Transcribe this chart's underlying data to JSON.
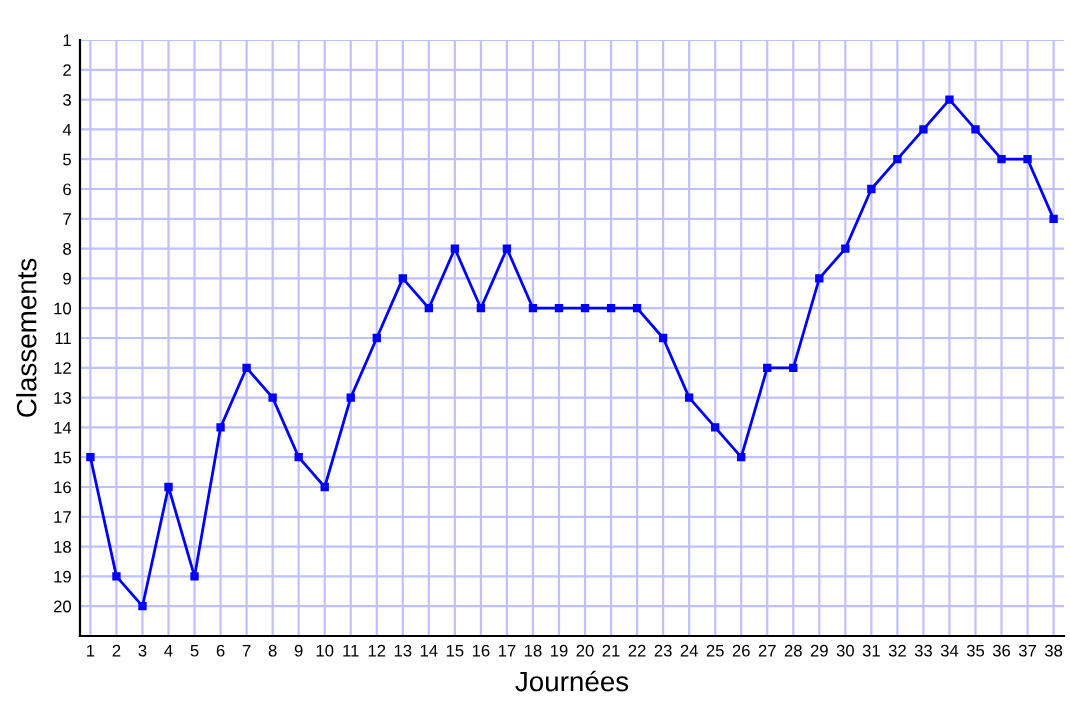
{
  "chart_data": {
    "type": "line",
    "xlabel": "Journées",
    "ylabel": "Classements",
    "x": [
      1,
      2,
      3,
      4,
      5,
      6,
      7,
      8,
      9,
      10,
      11,
      12,
      13,
      14,
      15,
      16,
      17,
      18,
      19,
      20,
      21,
      22,
      23,
      24,
      25,
      26,
      27,
      28,
      29,
      30,
      31,
      32,
      33,
      34,
      35,
      36,
      37,
      38
    ],
    "series": [
      {
        "color": "#0000ff",
        "values": [
          15,
          19,
          20,
          16,
          19,
          14,
          12,
          13,
          15,
          16,
          13,
          11,
          9,
          10,
          8,
          10,
          8,
          10,
          10,
          10,
          10,
          10,
          11,
          13,
          14,
          15,
          12,
          12,
          9,
          8,
          6,
          5,
          4,
          3,
          4,
          5,
          5,
          7
        ]
      }
    ],
    "xlim": [
      0.6,
      38.4
    ],
    "ylim": [
      21,
      1
    ],
    "xticks": [
      1,
      2,
      3,
      4,
      5,
      6,
      7,
      8,
      9,
      10,
      11,
      12,
      13,
      14,
      15,
      16,
      17,
      18,
      19,
      20,
      21,
      22,
      23,
      24,
      25,
      26,
      27,
      28,
      29,
      30,
      31,
      32,
      33,
      34,
      35,
      36,
      37,
      38
    ],
    "yticks": [
      1,
      2,
      3,
      4,
      5,
      6,
      7,
      8,
      9,
      10,
      11,
      12,
      13,
      14,
      15,
      16,
      17,
      18,
      19,
      20
    ],
    "grid": true,
    "marker": "square",
    "line_style": "solid"
  }
}
